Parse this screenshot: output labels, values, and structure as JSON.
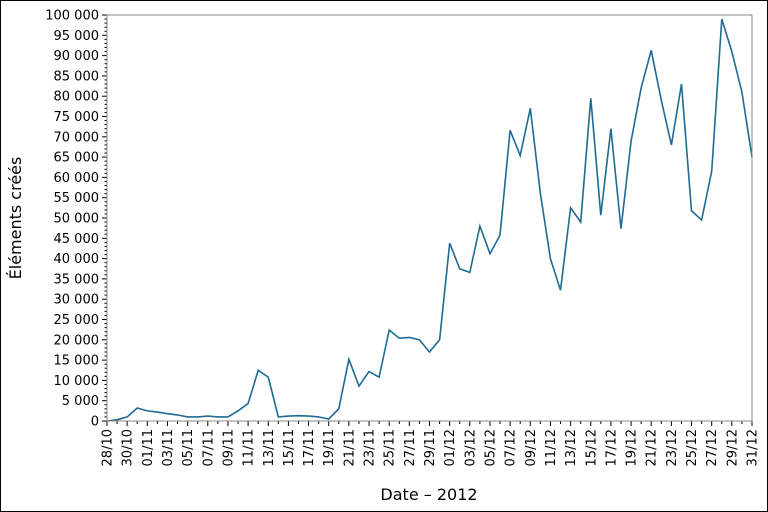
{
  "chart_data": {
    "type": "line",
    "title": "",
    "xlabel": "Date – 2012",
    "ylabel": "Éléments créés",
    "ylim": [
      0,
      100000
    ],
    "yticks": [
      0,
      5000,
      10000,
      15000,
      20000,
      25000,
      30000,
      35000,
      40000,
      45000,
      50000,
      55000,
      60000,
      65000,
      70000,
      75000,
      80000,
      85000,
      90000,
      95000,
      100000
    ],
    "ytick_labels": [
      "0",
      "5 000",
      "10 000",
      "15 000",
      "20 000",
      "25 000",
      "30 000",
      "35 000",
      "40 000",
      "45 000",
      "50 000",
      "55 000",
      "60 000",
      "65 000",
      "70 000",
      "75 000",
      "80 000",
      "85 000",
      "90 000",
      "95 000",
      "100 000"
    ],
    "grid": false,
    "line_color": "#1f6b94",
    "x": [
      "28/10",
      "29/10",
      "30/10",
      "31/10",
      "01/11",
      "02/11",
      "03/11",
      "04/11",
      "05/11",
      "06/11",
      "07/11",
      "08/11",
      "09/11",
      "10/11",
      "11/11",
      "12/11",
      "13/11",
      "14/11",
      "15/11",
      "16/11",
      "17/11",
      "18/11",
      "19/11",
      "20/11",
      "21/11",
      "22/11",
      "23/11",
      "24/11",
      "25/11",
      "26/11",
      "27/11",
      "28/11",
      "29/11",
      "30/11",
      "01/12",
      "02/12",
      "03/12",
      "04/12",
      "05/12",
      "06/12",
      "07/12",
      "08/12",
      "09/12",
      "10/12",
      "11/12",
      "12/12",
      "13/12",
      "14/12",
      "15/12",
      "16/12",
      "17/12",
      "18/12",
      "19/12",
      "20/12",
      "21/12",
      "22/12",
      "23/12",
      "24/12",
      "25/12",
      "26/12",
      "27/12",
      "28/12",
      "29/12",
      "30/12",
      "31/12"
    ],
    "values": [
      0,
      300,
      1000,
      3200,
      2500,
      2200,
      1800,
      1500,
      1000,
      1000,
      1200,
      1000,
      1000,
      2500,
      4300,
      12500,
      10800,
      1000,
      1200,
      1300,
      1200,
      1000,
      500,
      3000,
      15200,
      8600,
      12200,
      10800,
      22400,
      20400,
      20600,
      20000,
      17000,
      20000,
      43800,
      37500,
      36600,
      48000,
      41200,
      45800,
      71600,
      65400,
      77000,
      56000,
      40000,
      32200,
      52500,
      49000,
      79500,
      50700,
      72000,
      47400,
      69000,
      82000,
      91300,
      79000,
      68000,
      83000,
      51800,
      49500,
      61500,
      99000,
      91000,
      81000,
      65000
    ]
  }
}
